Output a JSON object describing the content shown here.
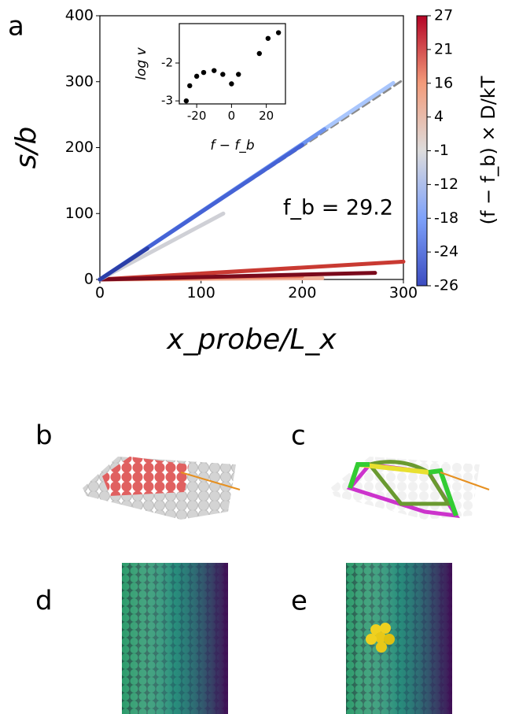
{
  "panels": [
    "a",
    "b",
    "c",
    "d",
    "e"
  ],
  "chart_data": [
    {
      "type": "line",
      "xlabel": "x_probe/L_x",
      "ylabel": "s/b",
      "annotation": "f_b = 29.2",
      "xlim": [
        0,
        300
      ],
      "ylim": [
        0,
        400
      ],
      "xticks": [
        0,
        100,
        200,
        300
      ],
      "yticks": [
        0,
        100,
        200,
        300,
        400
      ],
      "series": [
        {
          "color": "#8a8a8a",
          "dashed": true,
          "x": [
            0,
            300
          ],
          "values": [
            0,
            303
          ]
        },
        {
          "color": "#f2b39a",
          "x": [
            0,
            220
          ],
          "values": [
            0,
            2
          ]
        },
        {
          "color": "#e87a5e",
          "x": [
            0,
            200
          ],
          "values": [
            0,
            5
          ]
        },
        {
          "color": "#c93a32",
          "x": [
            0,
            300
          ],
          "values": [
            0,
            27
          ]
        },
        {
          "color": "#7a0a1c",
          "x": [
            0,
            272
          ],
          "values": [
            0,
            10
          ]
        },
        {
          "color": "#cfd0d6",
          "x": [
            0,
            122
          ],
          "values": [
            0,
            100
          ]
        },
        {
          "color": "#a9c6fd",
          "x": [
            0,
            290
          ],
          "values": [
            0,
            298
          ]
        },
        {
          "color": "#6e93ee",
          "x": [
            0,
            222
          ],
          "values": [
            0,
            228
          ]
        },
        {
          "color": "#4563d6",
          "x": [
            0,
            200
          ],
          "values": [
            0,
            204
          ]
        },
        {
          "color": "#2b3fa8",
          "x": [
            0,
            47
          ],
          "values": [
            0,
            47
          ]
        }
      ],
      "colorbar": {
        "label": "(f − f_b) × D/kT",
        "ticks": [
          27,
          21,
          16,
          4,
          -1,
          -12,
          -18,
          -24,
          -26
        ]
      }
    },
    {
      "type": "scatter",
      "xlabel": "f − f_b",
      "ylabel": "log v",
      "color": "#000000",
      "xlim": [
        -30,
        31
      ],
      "ylim": [
        -3.08,
        -0.96
      ],
      "xticks": [
        -20,
        0,
        20
      ],
      "yticks": [
        -3,
        -2
      ],
      "x": [
        -26,
        -24,
        -20,
        -16,
        -10,
        -5,
        0,
        4,
        16,
        21,
        27
      ],
      "values": [
        -3.0,
        -2.6,
        -2.35,
        -2.25,
        -2.2,
        -2.3,
        -2.55,
        -2.3,
        -1.75,
        -1.35,
        -1.2
      ]
    }
  ]
}
